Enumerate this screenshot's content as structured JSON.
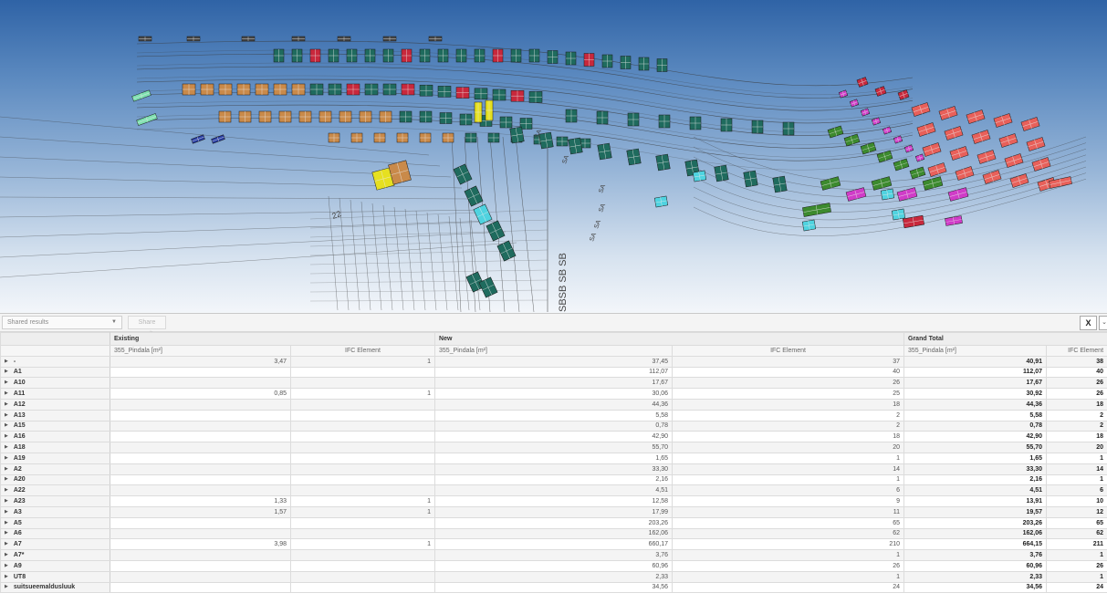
{
  "toolbar": {
    "shared_results_placeholder": "Shared results",
    "share_results_label": "Share results",
    "close_label": "X",
    "more_label": "⌄"
  },
  "viewport": {
    "axis_labels": [
      "SA",
      "SA",
      "SA",
      "SA",
      "SA",
      "SA"
    ],
    "section_label": "SBSB SB SB",
    "small_label": "22"
  },
  "pivot": {
    "groups": [
      "Existing",
      "New",
      "Grand Total"
    ],
    "measures": [
      "355_Pindala [m²]",
      "IFC Element"
    ],
    "rows": [
      {
        "label": "-",
        "existing_area": "3,47",
        "existing_ifc": "1",
        "new_area": "37,45",
        "new_ifc": "37",
        "total_area": "40,91",
        "total_ifc": "38"
      },
      {
        "label": "A1",
        "existing_area": "",
        "existing_ifc": "",
        "new_area": "112,07",
        "new_ifc": "40",
        "total_area": "112,07",
        "total_ifc": "40"
      },
      {
        "label": "A10",
        "existing_area": "",
        "existing_ifc": "",
        "new_area": "17,67",
        "new_ifc": "26",
        "total_area": "17,67",
        "total_ifc": "26"
      },
      {
        "label": "A11",
        "existing_area": "0,85",
        "existing_ifc": "1",
        "new_area": "30,06",
        "new_ifc": "25",
        "total_area": "30,92",
        "total_ifc": "26"
      },
      {
        "label": "A12",
        "existing_area": "",
        "existing_ifc": "",
        "new_area": "44,36",
        "new_ifc": "18",
        "total_area": "44,36",
        "total_ifc": "18"
      },
      {
        "label": "A13",
        "existing_area": "",
        "existing_ifc": "",
        "new_area": "5,58",
        "new_ifc": "2",
        "total_area": "5,58",
        "total_ifc": "2"
      },
      {
        "label": "A15",
        "existing_area": "",
        "existing_ifc": "",
        "new_area": "0,78",
        "new_ifc": "2",
        "total_area": "0,78",
        "total_ifc": "2"
      },
      {
        "label": "A16",
        "existing_area": "",
        "existing_ifc": "",
        "new_area": "42,90",
        "new_ifc": "18",
        "total_area": "42,90",
        "total_ifc": "18"
      },
      {
        "label": "A18",
        "existing_area": "",
        "existing_ifc": "",
        "new_area": "55,70",
        "new_ifc": "20",
        "total_area": "55,70",
        "total_ifc": "20"
      },
      {
        "label": "A19",
        "existing_area": "",
        "existing_ifc": "",
        "new_area": "1,65",
        "new_ifc": "1",
        "total_area": "1,65",
        "total_ifc": "1"
      },
      {
        "label": "A2",
        "existing_area": "",
        "existing_ifc": "",
        "new_area": "33,30",
        "new_ifc": "14",
        "total_area": "33,30",
        "total_ifc": "14"
      },
      {
        "label": "A20",
        "existing_area": "",
        "existing_ifc": "",
        "new_area": "2,16",
        "new_ifc": "1",
        "total_area": "2,16",
        "total_ifc": "1"
      },
      {
        "label": "A22",
        "existing_area": "",
        "existing_ifc": "",
        "new_area": "4,51",
        "new_ifc": "6",
        "total_area": "4,51",
        "total_ifc": "6"
      },
      {
        "label": "A23",
        "existing_area": "1,33",
        "existing_ifc": "1",
        "new_area": "12,58",
        "new_ifc": "9",
        "total_area": "13,91",
        "total_ifc": "10"
      },
      {
        "label": "A3",
        "existing_area": "1,57",
        "existing_ifc": "1",
        "new_area": "17,99",
        "new_ifc": "11",
        "total_area": "19,57",
        "total_ifc": "12"
      },
      {
        "label": "A5",
        "existing_area": "",
        "existing_ifc": "",
        "new_area": "203,26",
        "new_ifc": "65",
        "total_area": "203,26",
        "total_ifc": "65"
      },
      {
        "label": "A6",
        "existing_area": "",
        "existing_ifc": "",
        "new_area": "162,06",
        "new_ifc": "62",
        "total_area": "162,06",
        "total_ifc": "62"
      },
      {
        "label": "A7",
        "existing_area": "3,98",
        "existing_ifc": "1",
        "new_area": "660,17",
        "new_ifc": "210",
        "total_area": "664,15",
        "total_ifc": "211"
      },
      {
        "label": "A7*",
        "existing_area": "",
        "existing_ifc": "",
        "new_area": "3,76",
        "new_ifc": "1",
        "total_area": "3,76",
        "total_ifc": "1"
      },
      {
        "label": "A9",
        "existing_area": "",
        "existing_ifc": "",
        "new_area": "60,96",
        "new_ifc": "26",
        "total_area": "60,96",
        "total_ifc": "26"
      },
      {
        "label": "UT8",
        "existing_area": "",
        "existing_ifc": "",
        "new_area": "2,33",
        "new_ifc": "1",
        "total_area": "2,33",
        "total_ifc": "1"
      },
      {
        "label": "suitsueemaldusluuk",
        "existing_area": "",
        "existing_ifc": "",
        "new_area": "34,56",
        "new_ifc": "24",
        "total_area": "34,56",
        "total_ifc": "24"
      }
    ]
  },
  "colors": {
    "window_teal": "#1f6b5e",
    "window_red": "#c8283c",
    "window_orange": "#c98a4a",
    "window_salmon": "#e8605a",
    "window_green": "#3c8a2e",
    "window_cyan": "#4fd3e0",
    "window_magenta": "#d03cc8",
    "window_yellow": "#e6e020",
    "window_blue": "#2a3fa6",
    "window_mint": "#7ee0b0"
  }
}
